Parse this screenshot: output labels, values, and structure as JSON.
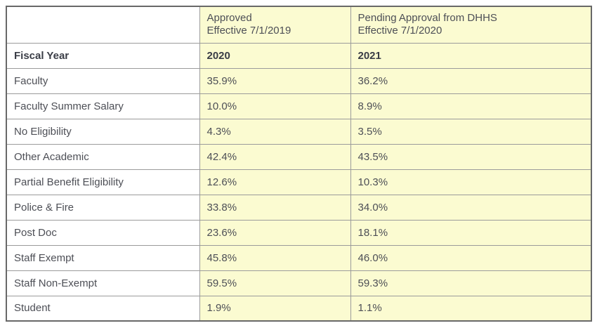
{
  "colors": {
    "highlight_yellow": "#fbfbd1",
    "inner_border": "#9b9b9b",
    "outer_border": "#686868",
    "text": "#4d4f56",
    "bold_text": "#3a3d46"
  },
  "table": {
    "header": {
      "blank": "",
      "approved_line1": "Approved",
      "approved_line2": "Effective 7/1/2019",
      "pending_line1": "Pending Approval from DHHS",
      "pending_line2": "Effective 7/1/2020"
    },
    "fiscal_row": {
      "label": "Fiscal Year",
      "year_approved": "2020",
      "year_pending": "2021"
    },
    "rows": [
      {
        "category": "Faculty",
        "approved": "35.9%",
        "pending": "36.2%"
      },
      {
        "category": "Faculty Summer Salary",
        "approved": "10.0%",
        "pending": "8.9%"
      },
      {
        "category": "No Eligibility",
        "approved": "4.3%",
        "pending": "3.5%"
      },
      {
        "category": "Other Academic",
        "approved": "42.4%",
        "pending": "43.5%"
      },
      {
        "category": "Partial Benefit Eligibility",
        "approved": "12.6%",
        "pending": "10.3%"
      },
      {
        "category": "Police & Fire",
        "approved": "33.8%",
        "pending": "34.0%"
      },
      {
        "category": "Post Doc",
        "approved": "23.6%",
        "pending": "18.1%"
      },
      {
        "category": "Staff Exempt",
        "approved": "45.8%",
        "pending": "46.0%"
      },
      {
        "category": "Staff Non-Exempt",
        "approved": "59.5%",
        "pending": "59.3%"
      },
      {
        "category": "Student",
        "approved": "1.9%",
        "pending": "1.1%"
      }
    ]
  },
  "chart_data": {
    "type": "table",
    "title": "",
    "units": "percent",
    "column_headers": [
      [
        "",
        "Approved Effective 7/1/2019",
        "Pending Approval from DHHS Effective 7/1/2020"
      ],
      [
        "Fiscal Year",
        "2020",
        "2021"
      ]
    ],
    "rows": [
      [
        "Faculty",
        35.9,
        36.2
      ],
      [
        "Faculty Summer Salary",
        10.0,
        8.9
      ],
      [
        "No Eligibility",
        4.3,
        3.5
      ],
      [
        "Other Academic",
        42.4,
        43.5
      ],
      [
        "Partial Benefit Eligibility",
        12.6,
        10.3
      ],
      [
        "Police & Fire",
        33.8,
        34.0
      ],
      [
        "Post Doc",
        23.6,
        18.1
      ],
      [
        "Staff Exempt",
        45.8,
        46.0
      ],
      [
        "Staff Non-Exempt",
        59.5,
        59.3
      ],
      [
        "Student",
        1.9,
        1.1
      ]
    ]
  }
}
